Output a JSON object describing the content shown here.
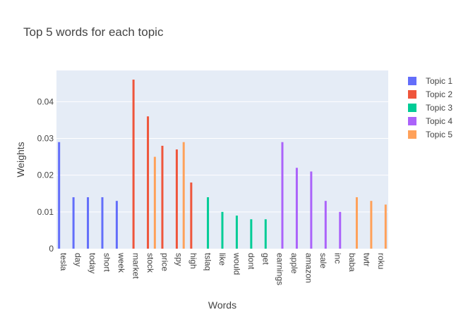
{
  "chart_data": {
    "type": "bar",
    "title": "Top 5 words for each topic",
    "xlabel": "Words",
    "ylabel": "Weights",
    "ylim": [
      0,
      0.0485
    ],
    "yticks": [
      {
        "value": 0,
        "label": "0"
      },
      {
        "value": 0.01,
        "label": "0.01"
      },
      {
        "value": 0.02,
        "label": "0.02"
      },
      {
        "value": 0.03,
        "label": "0.03"
      },
      {
        "value": 0.04,
        "label": "0.04"
      }
    ],
    "grid": true,
    "legend_position": "right",
    "categories": [
      "tesla",
      "day",
      "today",
      "short",
      "week",
      "market",
      "stock",
      "price",
      "spy",
      "high",
      "tslaq",
      "like",
      "would",
      "dont",
      "get",
      "earnings",
      "apple",
      "amazon",
      "sale",
      "inc",
      "baba",
      "twtr",
      "roku"
    ],
    "series": [
      {
        "name": "Topic 1",
        "color": "#636efa",
        "values": [
          0.029,
          0.014,
          0.014,
          0.014,
          0.013,
          null,
          null,
          null,
          null,
          null,
          null,
          null,
          null,
          null,
          null,
          null,
          null,
          null,
          null,
          null,
          null,
          null,
          null
        ]
      },
      {
        "name": "Topic 2",
        "color": "#ef553b",
        "values": [
          null,
          null,
          null,
          null,
          null,
          0.046,
          0.036,
          0.028,
          0.027,
          0.018,
          null,
          null,
          null,
          null,
          null,
          null,
          null,
          null,
          null,
          null,
          null,
          null,
          null
        ]
      },
      {
        "name": "Topic 3",
        "color": "#00cc96",
        "values": [
          null,
          null,
          null,
          null,
          null,
          null,
          null,
          null,
          null,
          null,
          0.014,
          0.01,
          0.009,
          0.008,
          0.008,
          null,
          null,
          null,
          null,
          null,
          null,
          null,
          null
        ]
      },
      {
        "name": "Topic 4",
        "color": "#ab63fa",
        "values": [
          null,
          null,
          null,
          null,
          null,
          null,
          null,
          null,
          null,
          null,
          null,
          null,
          null,
          null,
          null,
          0.029,
          0.022,
          0.021,
          0.013,
          0.01,
          null,
          null,
          null
        ]
      },
      {
        "name": "Topic 5",
        "color": "#ffa15a",
        "values": [
          null,
          null,
          null,
          null,
          null,
          null,
          0.025,
          null,
          0.029,
          null,
          null,
          null,
          null,
          null,
          null,
          null,
          null,
          null,
          null,
          null,
          0.014,
          0.013,
          0.012
        ]
      }
    ],
    "plot_bg": "#e5ecf6"
  }
}
